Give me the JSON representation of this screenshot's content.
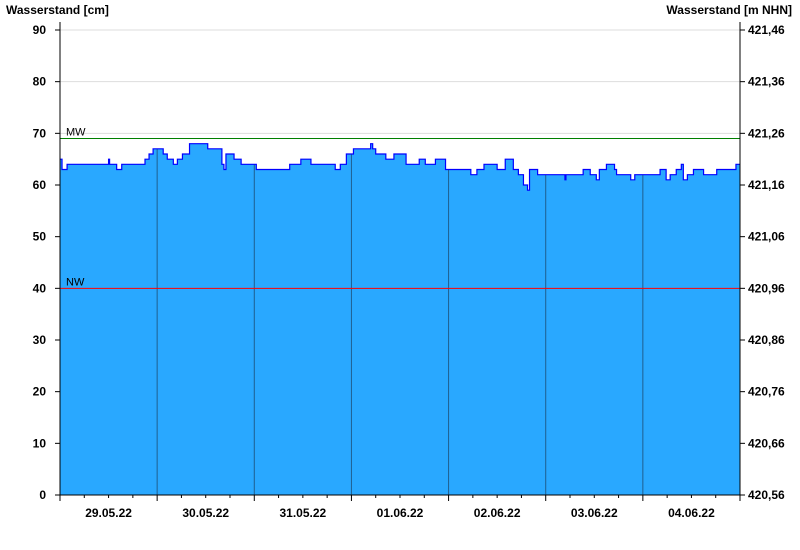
{
  "chart_data": {
    "type": "area",
    "ylabel": "Wasserstand [cm]",
    "ylabel_right": "Wasserstand [m NHN]",
    "ylim": [
      0,
      90
    ],
    "yticks": [
      0,
      10,
      20,
      30,
      40,
      50,
      60,
      70,
      80,
      90
    ],
    "yticks_right": [
      "420,56",
      "420,66",
      "420,76",
      "420,86",
      "420,96",
      "421,06",
      "421,16",
      "421,26",
      "421,36",
      "421,46"
    ],
    "xlim": [
      "29.05.22 00:00",
      "05.06.22 00:00"
    ],
    "xtick_labels": [
      "29.05.22",
      "30.05.22",
      "31.05.22",
      "01.06.22",
      "02.06.22",
      "03.06.22",
      "04.06.22"
    ],
    "grid": true,
    "colors": {
      "fill": "#29a8ff",
      "line": "#0000ff",
      "mw": "#008000",
      "nw": "#ff0000",
      "day_lines": "#1f5f8f",
      "grid": "#dddddd"
    },
    "reference_lines": [
      {
        "label": "MW",
        "value": 69
      },
      {
        "label": "NW",
        "value": 40
      }
    ],
    "series": [
      {
        "step": true,
        "points": [
          [
            "29.05.22 00:00",
            65
          ],
          [
            "29.05.22 00:30",
            63
          ],
          [
            "29.05.22 01:45",
            64
          ],
          [
            "29.05.22 12:00",
            65
          ],
          [
            "29.05.22 12:15",
            64
          ],
          [
            "29.05.22 14:00",
            63
          ],
          [
            "29.05.22 15:15",
            64
          ],
          [
            "29.05.22 21:00",
            65
          ],
          [
            "29.05.22 22:00",
            66
          ],
          [
            "29.05.22 23:00",
            67
          ],
          [
            "30.05.22 01:30",
            66
          ],
          [
            "30.05.22 02:30",
            65
          ],
          [
            "30.05.22 04:00",
            64
          ],
          [
            "30.05.22 05:00",
            65
          ],
          [
            "30.05.22 06:15",
            66
          ],
          [
            "30.05.22 08:00",
            68
          ],
          [
            "30.05.22 12:30",
            67
          ],
          [
            "30.05.22 16:00",
            64
          ],
          [
            "30.05.22 16:30",
            63
          ],
          [
            "30.05.22 17:00",
            66
          ],
          [
            "30.05.22 19:00",
            65
          ],
          [
            "30.05.22 20:45",
            64
          ],
          [
            "31.05.22 00:30",
            63
          ],
          [
            "31.05.22 08:45",
            64
          ],
          [
            "31.05.22 11:30",
            65
          ],
          [
            "31.05.22 14:00",
            64
          ],
          [
            "31.05.22 20:00",
            63
          ],
          [
            "31.05.22 21:15",
            64
          ],
          [
            "31.05.22 22:45",
            66
          ],
          [
            "01.06.22 00:30",
            67
          ],
          [
            "01.06.22 04:45",
            68
          ],
          [
            "01.06.22 05:15",
            67
          ],
          [
            "01.06.22 06:00",
            66
          ],
          [
            "01.06.22 08:30",
            65
          ],
          [
            "01.06.22 10:30",
            66
          ],
          [
            "01.06.22 13:30",
            64
          ],
          [
            "01.06.22 16:45",
            65
          ],
          [
            "01.06.22 18:15",
            64
          ],
          [
            "01.06.22 20:45",
            65
          ],
          [
            "01.06.22 23:15",
            63
          ],
          [
            "02.06.22 05:30",
            62
          ],
          [
            "02.06.22 07:00",
            63
          ],
          [
            "02.06.22 08:45",
            64
          ],
          [
            "02.06.22 12:00",
            63
          ],
          [
            "02.06.22 14:00",
            65
          ],
          [
            "02.06.22 16:00",
            63
          ],
          [
            "02.06.22 17:15",
            62
          ],
          [
            "02.06.22 18:30",
            60
          ],
          [
            "02.06.22 19:30",
            59
          ],
          [
            "02.06.22 20:00",
            63
          ],
          [
            "02.06.22 22:00",
            62
          ],
          [
            "03.06.22 04:45",
            61
          ],
          [
            "03.06.22 05:00",
            62
          ],
          [
            "03.06.22 09:15",
            63
          ],
          [
            "03.06.22 11:00",
            62
          ],
          [
            "03.06.22 12:30",
            61
          ],
          [
            "03.06.22 13:15",
            63
          ],
          [
            "03.06.22 15:00",
            64
          ],
          [
            "03.06.22 17:00",
            63
          ],
          [
            "03.06.22 17:30",
            62
          ],
          [
            "03.06.22 21:00",
            61
          ],
          [
            "03.06.22 22:00",
            62
          ],
          [
            "04.06.22 04:15",
            63
          ],
          [
            "04.06.22 05:45",
            61
          ],
          [
            "04.06.22 06:45",
            62
          ],
          [
            "04.06.22 08:15",
            63
          ],
          [
            "04.06.22 09:30",
            64
          ],
          [
            "04.06.22 10:00",
            61
          ],
          [
            "04.06.22 11:00",
            62
          ],
          [
            "04.06.22 12:30",
            63
          ],
          [
            "04.06.22 15:00",
            62
          ],
          [
            "04.06.22 18:15",
            63
          ],
          [
            "04.06.22 23:00",
            64
          ],
          [
            "05.06.22 00:00",
            64
          ]
        ]
      }
    ]
  }
}
